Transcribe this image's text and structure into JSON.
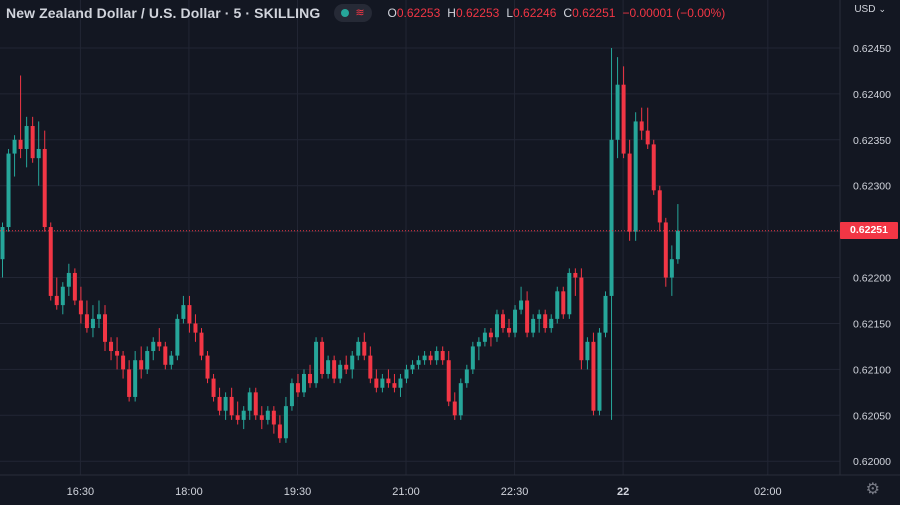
{
  "header": {
    "symbol": "New Zealand Dollar / U.S. Dollar · 5 · SKILLING",
    "ohlc": [
      {
        "k": "O",
        "v": "0.62253"
      },
      {
        "k": "H",
        "v": "0.62253"
      },
      {
        "k": "L",
        "v": "0.62246"
      },
      {
        "k": "C",
        "v": "0.62251"
      },
      {
        "k": "",
        "v": "−0.00001 (−0.00%)"
      }
    ],
    "currency": "USD"
  },
  "colors": {
    "up": "#26a69a",
    "down": "#f23645",
    "bg": "#131722",
    "grid": "#222634",
    "text": "#d1d4dc"
  },
  "chart_data": {
    "type": "candlestick",
    "title": "New Zealand Dollar / U.S. Dollar · 5 · SKILLING",
    "ylim": [
      0.61985,
      0.62475
    ],
    "y_ticks": [
      "0.62000",
      "0.62050",
      "0.62100",
      "0.62150",
      "0.62200",
      "0.62250",
      "0.62300",
      "0.62350",
      "0.62400",
      "0.62450"
    ],
    "x_ticks": [
      {
        "label": "16:30",
        "i": 13
      },
      {
        "label": "18:00",
        "i": 31
      },
      {
        "label": "19:30",
        "i": 49
      },
      {
        "label": "21:00",
        "i": 67
      },
      {
        "label": "22:30",
        "i": 85
      },
      {
        "label": "22",
        "i": 103
      },
      {
        "label": "02:00",
        "i": 127
      }
    ],
    "last_price": "0.62251",
    "last_value": 0.62251,
    "candles": [
      [
        0.6222,
        0.6226,
        0.622,
        0.62255
      ],
      [
        0.62255,
        0.6234,
        0.6225,
        0.62335
      ],
      [
        0.62335,
        0.62355,
        0.6231,
        0.6235
      ],
      [
        0.6235,
        0.6242,
        0.6233,
        0.6234
      ],
      [
        0.6234,
        0.62375,
        0.6232,
        0.62365
      ],
      [
        0.62365,
        0.62375,
        0.62325,
        0.6233
      ],
      [
        0.6233,
        0.6237,
        0.623,
        0.6234
      ],
      [
        0.6234,
        0.6236,
        0.6225,
        0.62255
      ],
      [
        0.62255,
        0.6226,
        0.62175,
        0.6218
      ],
      [
        0.6218,
        0.622,
        0.62165,
        0.6217
      ],
      [
        0.6217,
        0.62195,
        0.6216,
        0.6219
      ],
      [
        0.6219,
        0.62215,
        0.6218,
        0.62205
      ],
      [
        0.62205,
        0.6221,
        0.6217,
        0.62175
      ],
      [
        0.62175,
        0.6219,
        0.6215,
        0.6216
      ],
      [
        0.6216,
        0.62175,
        0.6214,
        0.62145
      ],
      [
        0.62145,
        0.6217,
        0.62135,
        0.62155
      ],
      [
        0.62155,
        0.62175,
        0.62145,
        0.6216
      ],
      [
        0.6216,
        0.6217,
        0.6212,
        0.6213
      ],
      [
        0.6213,
        0.62135,
        0.6211,
        0.6212
      ],
      [
        0.6212,
        0.62135,
        0.621,
        0.62115
      ],
      [
        0.62115,
        0.6212,
        0.6209,
        0.621
      ],
      [
        0.621,
        0.6211,
        0.62065,
        0.6207
      ],
      [
        0.6207,
        0.6212,
        0.62065,
        0.6211
      ],
      [
        0.6211,
        0.62125,
        0.6209,
        0.621
      ],
      [
        0.621,
        0.62125,
        0.62095,
        0.6212
      ],
      [
        0.6212,
        0.62135,
        0.6211,
        0.6213
      ],
      [
        0.6213,
        0.62145,
        0.6212,
        0.62125
      ],
      [
        0.62125,
        0.6213,
        0.621,
        0.62105
      ],
      [
        0.62105,
        0.6212,
        0.621,
        0.62115
      ],
      [
        0.62115,
        0.6216,
        0.6211,
        0.62155
      ],
      [
        0.62155,
        0.6218,
        0.6215,
        0.6217
      ],
      [
        0.6217,
        0.6218,
        0.6214,
        0.6215
      ],
      [
        0.6215,
        0.6216,
        0.6213,
        0.6214
      ],
      [
        0.6214,
        0.62145,
        0.6211,
        0.62115
      ],
      [
        0.62115,
        0.6212,
        0.62085,
        0.6209
      ],
      [
        0.6209,
        0.62095,
        0.62065,
        0.6207
      ],
      [
        0.6207,
        0.6208,
        0.6205,
        0.62055
      ],
      [
        0.62055,
        0.62075,
        0.62045,
        0.6207
      ],
      [
        0.6207,
        0.6208,
        0.62045,
        0.6205
      ],
      [
        0.6205,
        0.62065,
        0.6204,
        0.62045
      ],
      [
        0.62045,
        0.6206,
        0.62035,
        0.62055
      ],
      [
        0.62055,
        0.6208,
        0.62045,
        0.62075
      ],
      [
        0.62075,
        0.6208,
        0.62045,
        0.6205
      ],
      [
        0.6205,
        0.6206,
        0.62035,
        0.62045
      ],
      [
        0.62045,
        0.6206,
        0.6204,
        0.62055
      ],
      [
        0.62055,
        0.6206,
        0.6203,
        0.6204
      ],
      [
        0.6204,
        0.6205,
        0.6202,
        0.62025
      ],
      [
        0.62025,
        0.6207,
        0.6202,
        0.6206
      ],
      [
        0.6206,
        0.6209,
        0.62055,
        0.62085
      ],
      [
        0.62085,
        0.62095,
        0.6207,
        0.62075
      ],
      [
        0.62075,
        0.621,
        0.6207,
        0.62095
      ],
      [
        0.62095,
        0.62105,
        0.6208,
        0.62085
      ],
      [
        0.62085,
        0.62135,
        0.6208,
        0.6213
      ],
      [
        0.6213,
        0.62135,
        0.6209,
        0.62095
      ],
      [
        0.62095,
        0.62115,
        0.6209,
        0.6211
      ],
      [
        0.6211,
        0.62115,
        0.62085,
        0.6209
      ],
      [
        0.6209,
        0.6211,
        0.62085,
        0.62105
      ],
      [
        0.62105,
        0.62115,
        0.62095,
        0.621
      ],
      [
        0.621,
        0.6212,
        0.6209,
        0.62115
      ],
      [
        0.62115,
        0.62135,
        0.6211,
        0.6213
      ],
      [
        0.6213,
        0.6214,
        0.6211,
        0.62115
      ],
      [
        0.62115,
        0.62125,
        0.62085,
        0.6209
      ],
      [
        0.6209,
        0.621,
        0.62075,
        0.6208
      ],
      [
        0.6208,
        0.62095,
        0.62075,
        0.6209
      ],
      [
        0.6209,
        0.621,
        0.6208,
        0.62085
      ],
      [
        0.62085,
        0.62095,
        0.62075,
        0.6208
      ],
      [
        0.6208,
        0.62095,
        0.6207,
        0.6209
      ],
      [
        0.6209,
        0.62105,
        0.62085,
        0.621
      ],
      [
        0.621,
        0.6211,
        0.62095,
        0.62105
      ],
      [
        0.62105,
        0.62115,
        0.621,
        0.6211
      ],
      [
        0.6211,
        0.6212,
        0.62105,
        0.62115
      ],
      [
        0.62115,
        0.6212,
        0.62105,
        0.6211
      ],
      [
        0.6211,
        0.62125,
        0.62105,
        0.6212
      ],
      [
        0.6212,
        0.62125,
        0.62105,
        0.6211
      ],
      [
        0.6211,
        0.6212,
        0.6206,
        0.62065
      ],
      [
        0.62065,
        0.62075,
        0.62045,
        0.6205
      ],
      [
        0.6205,
        0.6209,
        0.62045,
        0.62085
      ],
      [
        0.62085,
        0.62105,
        0.6208,
        0.621
      ],
      [
        0.621,
        0.6213,
        0.62095,
        0.62125
      ],
      [
        0.62125,
        0.62135,
        0.6211,
        0.6213
      ],
      [
        0.6213,
        0.62145,
        0.62125,
        0.6214
      ],
      [
        0.6214,
        0.62145,
        0.62125,
        0.62135
      ],
      [
        0.62135,
        0.62165,
        0.6213,
        0.6216
      ],
      [
        0.6216,
        0.62165,
        0.6214,
        0.62145
      ],
      [
        0.62145,
        0.62155,
        0.62135,
        0.6214
      ],
      [
        0.6214,
        0.6217,
        0.62135,
        0.62165
      ],
      [
        0.62165,
        0.6219,
        0.6216,
        0.62175
      ],
      [
        0.62175,
        0.62185,
        0.62135,
        0.6214
      ],
      [
        0.6214,
        0.6216,
        0.62135,
        0.62155
      ],
      [
        0.62155,
        0.62165,
        0.6214,
        0.6216
      ],
      [
        0.6216,
        0.62165,
        0.6214,
        0.62145
      ],
      [
        0.62145,
        0.6216,
        0.6214,
        0.62155
      ],
      [
        0.62155,
        0.6219,
        0.6215,
        0.62185
      ],
      [
        0.62185,
        0.6219,
        0.62155,
        0.6216
      ],
      [
        0.6216,
        0.6221,
        0.62155,
        0.62205
      ],
      [
        0.62205,
        0.6221,
        0.6218,
        0.622
      ],
      [
        0.622,
        0.6221,
        0.621,
        0.6211
      ],
      [
        0.6211,
        0.62135,
        0.621,
        0.6213
      ],
      [
        0.6213,
        0.6214,
        0.6205,
        0.62055
      ],
      [
        0.62055,
        0.62145,
        0.6205,
        0.6214
      ],
      [
        0.6214,
        0.62185,
        0.62135,
        0.6218
      ],
      [
        0.6218,
        0.6245,
        0.62045,
        0.6235
      ],
      [
        0.6235,
        0.6244,
        0.6233,
        0.6241
      ],
      [
        0.6241,
        0.6243,
        0.6233,
        0.62335
      ],
      [
        0.62335,
        0.6235,
        0.6224,
        0.6225
      ],
      [
        0.6225,
        0.6238,
        0.6224,
        0.6237
      ],
      [
        0.6237,
        0.62385,
        0.6235,
        0.6236
      ],
      [
        0.6236,
        0.62385,
        0.6234,
        0.62345
      ],
      [
        0.62345,
        0.6235,
        0.6229,
        0.62295
      ],
      [
        0.62295,
        0.623,
        0.6225,
        0.6226
      ],
      [
        0.6226,
        0.62265,
        0.6219,
        0.622
      ],
      [
        0.622,
        0.62235,
        0.6218,
        0.6222
      ],
      [
        0.6222,
        0.6228,
        0.62215,
        0.62251
      ]
    ]
  }
}
